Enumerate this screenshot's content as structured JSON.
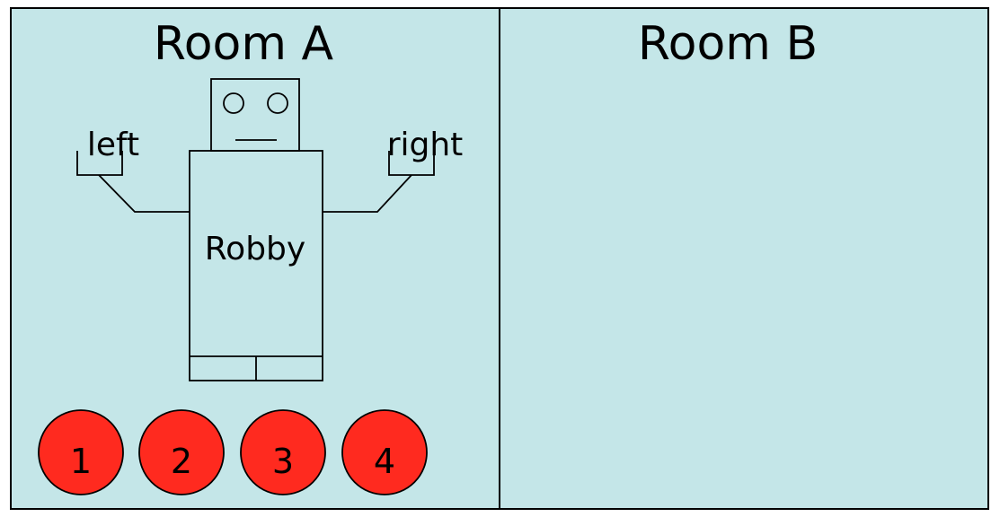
{
  "rooms": [
    {
      "label": "Room A"
    },
    {
      "label": "Room B"
    }
  ],
  "robot": {
    "name": "Robby",
    "left_gripper_label": "left",
    "right_gripper_label": "right"
  },
  "balls": [
    {
      "label": "1"
    },
    {
      "label": "2"
    },
    {
      "label": "3"
    },
    {
      "label": "4"
    }
  ],
  "colors": {
    "room_fill": "#c4e6e8",
    "ball_fill": "#ff2a1f",
    "line": "#000000"
  }
}
